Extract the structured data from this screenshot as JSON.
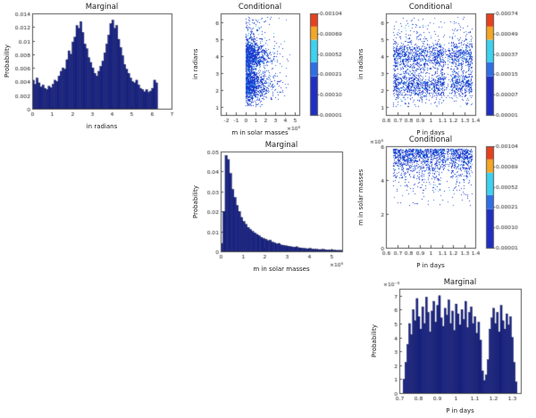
{
  "page": {
    "background": "#ffffff"
  },
  "style": {
    "axis_color": "#555555",
    "text_color": "#1a1a1a",
    "bar_fill": "#1c278f",
    "bar_edge": "#0a0f3c",
    "point_colors": [
      [
        "#1d39cc",
        0.78
      ],
      [
        "#2d6fe8",
        0.16
      ],
      [
        "#31c7ee",
        0.06
      ]
    ],
    "colorbar_segments": [
      {
        "color": "#1f2fc4",
        "frac": 0.38
      },
      {
        "color": "#2e6fe8",
        "frac": 0.14
      },
      {
        "color": "#3cd2f0",
        "frac": 0.22
      },
      {
        "color": "#f5a623",
        "frac": 0.13
      },
      {
        "color": "#e8401c",
        "frac": 0.13
      }
    ]
  },
  "chart_data": [
    {
      "id": "marginal-radians",
      "type": "bar",
      "title": "Marginal",
      "xlabel": "in radians",
      "ylabel": "Probability",
      "xlim": [
        0,
        7
      ],
      "ylim": [
        0,
        0.014
      ],
      "xticks": {
        "values": [
          0,
          1,
          2,
          3,
          4,
          5,
          6,
          7
        ],
        "labels": [
          "0",
          "1",
          "2",
          "3",
          "4",
          "5",
          "6",
          "7"
        ]
      },
      "yticks": {
        "values": [
          0,
          0.002,
          0.004,
          0.006,
          0.008,
          0.01,
          0.012,
          0.014
        ],
        "labels": [
          "0",
          "0.002",
          "0.004",
          "0.006",
          "0.008",
          "0.01",
          "0.012",
          "0.014"
        ]
      },
      "bins": {
        "x0": 0,
        "dx": 0.1,
        "values": [
          0.0042,
          0.0036,
          0.0045,
          0.0038,
          0.0032,
          0.0035,
          0.003,
          0.0028,
          0.0033,
          0.0031,
          0.0036,
          0.0042,
          0.004,
          0.0048,
          0.0055,
          0.006,
          0.0058,
          0.0072,
          0.0085,
          0.008,
          0.0098,
          0.0105,
          0.0122,
          0.0118,
          0.0128,
          0.0112,
          0.0095,
          0.0088,
          0.0075,
          0.0068,
          0.006,
          0.0052,
          0.0048,
          0.0055,
          0.0062,
          0.007,
          0.0082,
          0.0095,
          0.0108,
          0.0125,
          0.013,
          0.0118,
          0.0122,
          0.0102,
          0.009,
          0.0078,
          0.0065,
          0.0058,
          0.0052,
          0.0045,
          0.004,
          0.0038,
          0.0042,
          0.0035,
          0.003,
          0.0028,
          0.0025,
          0.0028,
          0.0024,
          0.0026,
          0.003,
          0.0042,
          0.0038
        ]
      }
    },
    {
      "id": "conditional-m-radians",
      "type": "scatter",
      "title": "Conditional",
      "xlabel": "m in solar masses",
      "ylabel": "in radians",
      "x_exp": "×10⁶",
      "xlim": [
        -2.5,
        5.5
      ],
      "ylim": [
        0.5,
        6.5
      ],
      "xticks": {
        "values": [
          -2,
          -1,
          0,
          1,
          2,
          3,
          4,
          5
        ],
        "labels": [
          "-2",
          "-1",
          "0",
          "1",
          "2",
          "3",
          "4",
          "5"
        ]
      },
      "yticks": {
        "values": [
          1,
          2,
          3,
          4,
          5,
          6
        ],
        "labels": [
          "1",
          "2",
          "3",
          "4",
          "5",
          "6"
        ]
      },
      "scatter": {
        "seed": 7,
        "n": 2400,
        "x": {
          "type": "exp",
          "scale": 0.85,
          "min": 0.02,
          "max": 4.5
        },
        "y": {
          "type": "bimodal",
          "uniformFrac": 0.18,
          "modes": [
            [
              2.3,
              0.4
            ],
            [
              4.0,
              0.45
            ]
          ],
          "min": 1.0,
          "max": 6.3
        }
      },
      "colorbar": {
        "ticks": [
          "0.00104",
          "0.00069",
          "0.00052",
          "0.00021",
          "0.00010",
          "0.00001"
        ]
      }
    },
    {
      "id": "conditional-P-radians",
      "type": "scatter",
      "title": "Conditional",
      "xlabel": "P in days",
      "ylabel": "in radians",
      "xlim": [
        0.6,
        1.4
      ],
      "ylim": [
        0.5,
        6.5
      ],
      "xticks": {
        "values": [
          0.6,
          0.7,
          0.8,
          0.9,
          1,
          1.1,
          1.2,
          1.3,
          1.4
        ],
        "labels": [
          "0.6",
          "0.7",
          "0.8",
          "0.9",
          "1",
          "1.1",
          "1.2",
          "1.3",
          "1.4"
        ]
      },
      "yticks": {
        "values": [
          1,
          2,
          3,
          4,
          5,
          6
        ],
        "labels": [
          "1",
          "2",
          "3",
          "4",
          "5",
          "6"
        ]
      },
      "scatter": {
        "seed": 13,
        "n": 2600,
        "x": {
          "type": "uniform",
          "min": 0.66,
          "max": 1.37,
          "dips": [
            {
              "from": 1.12,
              "to": 1.18,
              "keep": 0.3
            },
            {
              "from": 0.97,
              "to": 1.02,
              "keep": 0.65
            }
          ]
        },
        "y": {
          "type": "bimodal",
          "uniformFrac": 0.18,
          "modes": [
            [
              2.3,
              0.4
            ],
            [
              4.0,
              0.45
            ]
          ],
          "min": 1.0,
          "max": 6.3
        }
      },
      "colorbar": {
        "ticks": [
          "0.00074",
          "0.00049",
          "0.00037",
          "0.00015",
          "0.00007",
          "0.00001"
        ]
      }
    },
    {
      "id": "marginal-m",
      "type": "bar",
      "title": "Marginal",
      "xlabel": "m in solar masses",
      "ylabel": "Probability",
      "x_exp": "×10⁶",
      "xlim": [
        0,
        5.5
      ],
      "ylim": [
        0,
        0.05
      ],
      "xticks": {
        "values": [
          0,
          1,
          2,
          3,
          4,
          5
        ],
        "labels": [
          "0",
          "1",
          "2",
          "3",
          "4",
          "5"
        ]
      },
      "yticks": {
        "values": [
          0,
          0.01,
          0.02,
          0.03,
          0.04,
          0.05
        ],
        "labels": [
          "0",
          "0.01",
          "0.02",
          "0.03",
          "0.04",
          "0.05"
        ]
      },
      "bins": {
        "x0": 0,
        "dx": 0.1,
        "values": [
          0.004,
          0.02,
          0.048,
          0.046,
          0.039,
          0.031,
          0.027,
          0.023,
          0.02,
          0.017,
          0.015,
          0.0135,
          0.012,
          0.011,
          0.01,
          0.0092,
          0.0085,
          0.0078,
          0.007,
          0.0064,
          0.006,
          0.0054,
          0.0055,
          0.0046,
          0.0042,
          0.0038,
          0.004,
          0.0032,
          0.003,
          0.0028,
          0.0026,
          0.0024,
          0.0022,
          0.0021,
          0.0023,
          0.0018,
          0.0017,
          0.0015,
          0.0014,
          0.0013,
          0.0015,
          0.0011,
          0.0011,
          0.001,
          0.0009,
          0.0009,
          0.001,
          0.0008,
          0.0007,
          0.0007,
          0.0006,
          0.0006,
          0.0005,
          0.0005,
          0.0005
        ]
      }
    },
    {
      "id": "conditional-P-m",
      "type": "scatter",
      "title": "Conditional",
      "xlabel": "P in days",
      "ylabel": "m in solar masses",
      "y_exp": "×10⁶",
      "xlim": [
        0.6,
        1.4
      ],
      "ylim": [
        0,
        6
      ],
      "xticks": {
        "values": [
          0.6,
          0.7,
          0.8,
          0.9,
          1,
          1.1,
          1.2,
          1.3,
          1.4
        ],
        "labels": [
          "0.6",
          "0.7",
          "0.8",
          "0.9",
          "1",
          "1.1",
          "1.2",
          "1.3",
          "1.4"
        ]
      },
      "yticks": {
        "values": [
          0,
          2,
          4,
          6
        ],
        "labels": [
          "0",
          "2",
          "4",
          "6"
        ]
      },
      "scatter": {
        "seed": 21,
        "n": 1700,
        "x": {
          "type": "uniform",
          "min": 0.66,
          "max": 1.37,
          "dips": [
            {
              "from": 1.12,
              "to": 1.18,
              "keep": 0.35
            }
          ]
        },
        "y": {
          "type": "topexp",
          "base": 5.85,
          "scale": 0.75,
          "min": 2.5
        }
      },
      "colorbar": {
        "ticks": [
          "0.00104",
          "0.00069",
          "0.00052",
          "0.00021",
          "0.00010",
          "0.00001"
        ]
      }
    },
    {
      "id": "marginal-P",
      "type": "bar",
      "title": "Marginal",
      "xlabel": "P in days",
      "ylabel": "Probability",
      "y_exp": "×10⁻³",
      "xlim": [
        0.7,
        1.35
      ],
      "ylim": [
        0,
        7.5
      ],
      "xticks": {
        "values": [
          0.7,
          0.8,
          0.9,
          1,
          1.1,
          1.2,
          1.3
        ],
        "labels": [
          "0.7",
          "0.8",
          "0.9",
          "1",
          "1.1",
          "1.2",
          "1.3"
        ]
      },
      "yticks": {
        "values": [
          0,
          1,
          2,
          3,
          4,
          5,
          6,
          7
        ],
        "labels": [
          "0",
          "1",
          "2",
          "3",
          "4",
          "5",
          "6",
          "7"
        ]
      },
      "bins": {
        "x0": 0.72,
        "dx": 0.01,
        "values": [
          1.0,
          2.2,
          3.5,
          5.0,
          4.2,
          6.0,
          5.2,
          6.8,
          5.5,
          4.6,
          6.2,
          5.0,
          6.9,
          5.8,
          4.4,
          5.9,
          6.6,
          5.1,
          6.3,
          7.0,
          5.4,
          4.8,
          6.1,
          5.6,
          6.7,
          5.0,
          5.9,
          4.5,
          6.4,
          5.7,
          4.9,
          6.0,
          5.3,
          6.6,
          4.7,
          5.8,
          6.2,
          5.0,
          5.5,
          4.3,
          5.1,
          3.8,
          1.6,
          0.9,
          1.3,
          2.4,
          4.6,
          5.4,
          6.1,
          5.0,
          5.8,
          4.4,
          6.3,
          5.2,
          4.6,
          5.7,
          4.9,
          5.5,
          4.0,
          2.2,
          0.8
        ]
      }
    }
  ]
}
